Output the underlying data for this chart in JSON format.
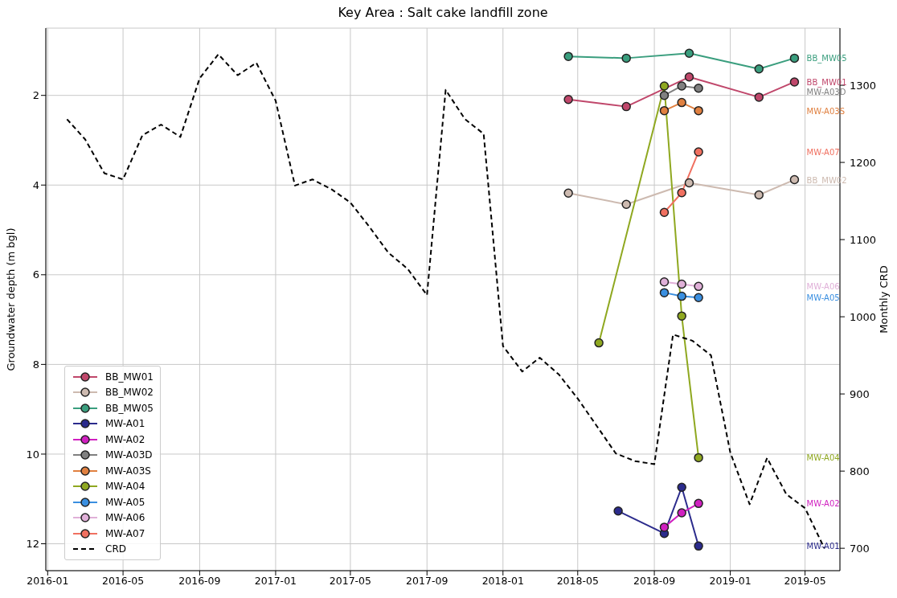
{
  "chart_data": {
    "type": "line",
    "title": "Key Area : Salt cake landfill zone",
    "ylabel": "Groundwater depth (m bgl)",
    "y2label": "Monthly CRD",
    "xlim": [
      "2015-12-29",
      "2019-06-26"
    ],
    "xticks": [
      "2016-01",
      "2016-05",
      "2016-09",
      "2017-01",
      "2017-05",
      "2017-09",
      "2018-01",
      "2018-05",
      "2018-09",
      "2019-01",
      "2019-05"
    ],
    "ylim": [
      12.6,
      0.5
    ],
    "yticks": [
      2,
      4,
      6,
      8,
      10,
      12
    ],
    "y2lim": [
      671,
      1374
    ],
    "y2ticks": [
      700,
      800,
      900,
      1000,
      1100,
      1200,
      1300
    ],
    "grid": true,
    "legend": "bottom left",
    "marker": "circle",
    "series": [
      {
        "name": "BB_MW01",
        "color": "#c0476b",
        "x": [
          "2018-04-16",
          "2018-07-18",
          "2018-10-27",
          "2019-02-16",
          "2019-04-14"
        ],
        "values": [
          2.09,
          2.25,
          1.59,
          2.04,
          1.7
        ]
      },
      {
        "name": "BB_MW02",
        "color": "#cdbab0",
        "x": [
          "2018-04-16",
          "2018-07-18",
          "2018-10-27",
          "2019-02-16",
          "2019-04-14"
        ],
        "values": [
          4.18,
          4.43,
          3.95,
          4.22,
          3.88
        ]
      },
      {
        "name": "BB_MW05",
        "color": "#3a9e7e",
        "x": [
          "2018-04-16",
          "2018-07-18",
          "2018-10-27",
          "2019-02-16",
          "2019-04-14"
        ],
        "values": [
          1.13,
          1.17,
          1.06,
          1.41,
          1.17
        ]
      },
      {
        "name": "MW-A01",
        "color": "#2b2b8c",
        "x": [
          "2018-07-05",
          "2018-09-17",
          "2018-10-15",
          "2018-11-11"
        ],
        "values": [
          11.27,
          11.77,
          10.74,
          12.05
        ]
      },
      {
        "name": "MW-A02",
        "color": "#d020c0",
        "x": [
          "2018-09-17",
          "2018-10-15",
          "2018-11-11"
        ],
        "values": [
          11.63,
          11.31,
          11.1
        ]
      },
      {
        "name": "MW-A03D",
        "color": "#808080",
        "x": [
          "2018-09-17",
          "2018-10-15",
          "2018-11-11"
        ],
        "values": [
          2.0,
          1.79,
          1.84
        ]
      },
      {
        "name": "MW-A03S",
        "color": "#e08040",
        "x": [
          "2018-09-17",
          "2018-10-15",
          "2018-11-11"
        ],
        "values": [
          2.34,
          2.16,
          2.34
        ]
      },
      {
        "name": "MW-A04",
        "color": "#8fa820",
        "x": [
          "2018-06-04",
          "2018-09-17",
          "2018-10-15",
          "2018-11-11"
        ],
        "values": [
          7.52,
          1.79,
          6.92,
          10.08
        ]
      },
      {
        "name": "MW-A05",
        "color": "#3a8fe0",
        "x": [
          "2018-09-17",
          "2018-10-15",
          "2018-11-11"
        ],
        "values": [
          6.4,
          6.48,
          6.51
        ]
      },
      {
        "name": "MW-A06",
        "color": "#e0b0d8",
        "x": [
          "2018-09-17",
          "2018-10-15",
          "2018-11-11"
        ],
        "values": [
          6.16,
          6.21,
          6.26
        ]
      },
      {
        "name": "MW-A07",
        "color": "#f07060",
        "x": [
          "2018-09-17",
          "2018-10-15",
          "2018-11-11"
        ],
        "values": [
          4.61,
          4.17,
          3.26
        ]
      },
      {
        "name": "CRD",
        "color": "#000000",
        "axis": "y2",
        "line_style": "dashed",
        "marker": "none",
        "x": [
          "2016-02",
          "2016-03",
          "2016-04",
          "2016-05",
          "2016-06",
          "2016-07",
          "2016-08",
          "2016-09",
          "2016-10",
          "2016-11",
          "2016-12",
          "2017-01",
          "2017-02",
          "2017-03",
          "2017-04",
          "2017-05",
          "2017-06",
          "2017-07",
          "2017-08",
          "2017-09",
          "2017-10",
          "2017-11",
          "2017-12",
          "2018-01",
          "2018-02",
          "2018-03",
          "2018-04",
          "2018-05",
          "2018-06",
          "2018-07",
          "2018-08",
          "2018-09",
          "2018-10",
          "2018-11",
          "2018-12",
          "2019-01",
          "2019-02",
          "2019-03",
          "2019-04",
          "2019-05",
          "2019-06"
        ],
        "values": [
          1256,
          1230,
          1186,
          1178,
          1235,
          1249,
          1233,
          1309,
          1340,
          1313,
          1329,
          1280,
          1170,
          1178,
          1165,
          1148,
          1116,
          1083,
          1062,
          1028,
          1294,
          1256,
          1237,
          962,
          929,
          947,
          925,
          894,
          858,
          823,
          813,
          809,
          977,
          969,
          950,
          824,
          757,
          817,
          770,
          752,
          700
        ]
      }
    ],
    "annotations": [
      "BB_MW01",
      "BB_MW02",
      "BB_MW05",
      "MW-A01",
      "MW-A02",
      "MW-A03D",
      "MW-A03S",
      "MW-A04",
      "MW-A05",
      "MW-A06",
      "MW-A07"
    ]
  }
}
